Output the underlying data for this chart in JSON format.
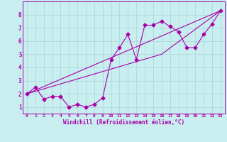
{
  "xlabel": "Windchill (Refroidissement éolien,°C)",
  "ylabel": "",
  "background_color": "#c8eef0",
  "grid_color": "#b0d8dc",
  "line_color": "#aa00aa",
  "spine_color": "#aa00aa",
  "xlim": [
    -0.5,
    23.5
  ],
  "ylim": [
    0.5,
    9.0
  ],
  "xticks": [
    0,
    1,
    2,
    3,
    4,
    5,
    6,
    7,
    8,
    9,
    10,
    11,
    12,
    13,
    14,
    15,
    16,
    17,
    18,
    19,
    20,
    21,
    22,
    23
  ],
  "yticks": [
    1,
    2,
    3,
    4,
    5,
    6,
    7,
    8
  ],
  "series1_x": [
    0,
    1,
    2,
    3,
    4,
    5,
    6,
    7,
    8,
    9,
    10,
    11,
    12,
    13,
    14,
    15,
    16,
    17,
    18,
    19,
    20,
    21,
    22,
    23
  ],
  "series1_y": [
    2.0,
    2.5,
    1.6,
    1.8,
    1.8,
    1.0,
    1.2,
    1.0,
    1.2,
    1.7,
    4.6,
    5.5,
    6.5,
    4.6,
    7.2,
    7.2,
    7.5,
    7.1,
    6.7,
    5.5,
    5.5,
    6.5,
    7.3,
    8.3
  ],
  "series2_x": [
    0,
    23
  ],
  "series2_y": [
    2.0,
    8.3
  ],
  "series3_x": [
    0,
    16,
    23
  ],
  "series3_y": [
    2.0,
    5.0,
    8.3
  ],
  "xtick_fontsize": 4.5,
  "ytick_fontsize": 5.5,
  "xlabel_fontsize": 5.5,
  "marker_size": 2.5,
  "linewidth": 0.8
}
